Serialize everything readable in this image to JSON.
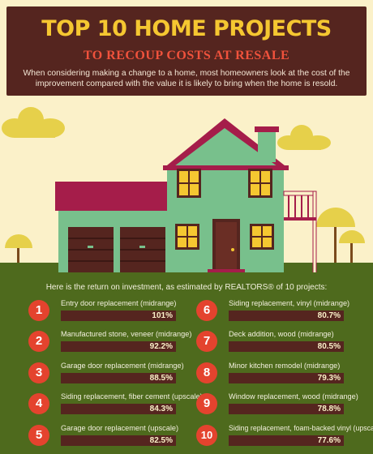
{
  "header": {
    "title": "TOP 10 HOME PROJECTS",
    "subtitle": "TO RECOUP COSTS AT RESALE",
    "intro": "When considering making a change to a home, most homeowners look at the cost of the improvement compared with the value it is likely to bring when the home is resold."
  },
  "colors": {
    "header_bg": "#55251f",
    "title": "#f5c731",
    "subtitle": "#f0523c",
    "background": "#fbf1c9",
    "panel_bg": "#4e6a1d",
    "badge": "#e4432e",
    "house_wall": "#78c08c",
    "roof": "#a51d4a"
  },
  "illustration": {
    "subject": "house-icon"
  },
  "projects": {
    "intro": "Here is the return on investment, as estimated by REALTORS® of 10 projects:",
    "items": [
      {
        "rank": "1",
        "name": "Entry door replacement (midrange)",
        "roi": "101%"
      },
      {
        "rank": "2",
        "name": "Manufactured stone, veneer (midrange)",
        "roi": "92.2%"
      },
      {
        "rank": "3",
        "name": "Garage door replacement (midrange)",
        "roi": "88.5%"
      },
      {
        "rank": "4",
        "name": "Siding replacement, fiber cement (upscale)",
        "roi": "84.3%"
      },
      {
        "rank": "5",
        "name": "Garage door replacement (upscale)",
        "roi": "82.5%"
      },
      {
        "rank": "6",
        "name": "Siding replacement, vinyl (midrange)",
        "roi": "80.7%"
      },
      {
        "rank": "7",
        "name": "Deck addition, wood (midrange)",
        "roi": "80.5%"
      },
      {
        "rank": "8",
        "name": "Minor kitchen remodel (midrange)",
        "roi": "79.3%"
      },
      {
        "rank": "9",
        "name": "Window replacement, wood (midrange)",
        "roi": "78.8%"
      },
      {
        "rank": "10",
        "name": "Siding replacement, foam-backed vinyl (upscale)",
        "roi": "77.6%"
      }
    ]
  }
}
